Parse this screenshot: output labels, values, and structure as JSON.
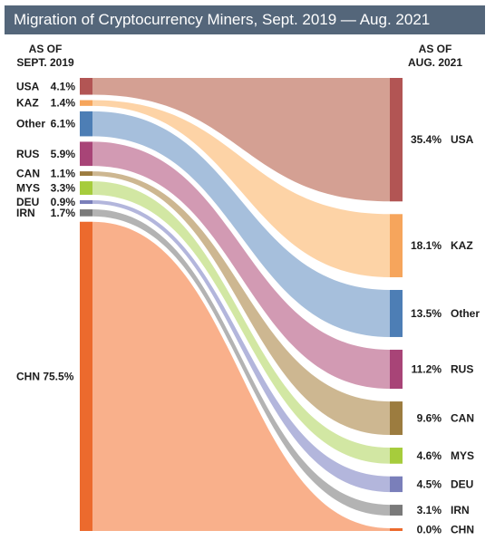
{
  "chart_data": {
    "type": "sankey",
    "title": "Migration of Cryptocurrency Miners, Sept. 2019 — Aug. 2021",
    "left_header": [
      "AS OF",
      "SEPT. 2019"
    ],
    "right_header": [
      "AS OF",
      "AUG. 2021"
    ],
    "nodes": [
      {
        "code": "USA",
        "start": 4.1,
        "end": 35.4,
        "bar_color": "#b25554",
        "flow_color": "#d4a093"
      },
      {
        "code": "KAZ",
        "start": 1.4,
        "end": 18.1,
        "bar_color": "#f6a55c",
        "flow_color": "#fdd3a6"
      },
      {
        "code": "Other",
        "start": 6.1,
        "end": 13.5,
        "bar_color": "#4d7eb5",
        "flow_color": "#a6bfdc"
      },
      {
        "code": "RUS",
        "start": 5.9,
        "end": 11.2,
        "bar_color": "#a84477",
        "flow_color": "#d29ab3"
      },
      {
        "code": "CAN",
        "start": 1.1,
        "end": 9.6,
        "bar_color": "#9c7c3f",
        "flow_color": "#cdb791"
      },
      {
        "code": "MYS",
        "start": 3.3,
        "end": 4.6,
        "bar_color": "#a6cc3c",
        "flow_color": "#d2e7a3"
      },
      {
        "code": "DEU",
        "start": 0.9,
        "end": 4.5,
        "bar_color": "#7a7fba",
        "flow_color": "#b3b6dc"
      },
      {
        "code": "IRN",
        "start": 1.7,
        "end": 3.1,
        "bar_color": "#7a7a7a",
        "flow_color": "#b3b3b3"
      },
      {
        "code": "CHN",
        "start": 75.5,
        "end": 0.0,
        "bar_color": "#ec6a2d",
        "flow_color": "#f9b08b"
      }
    ]
  }
}
